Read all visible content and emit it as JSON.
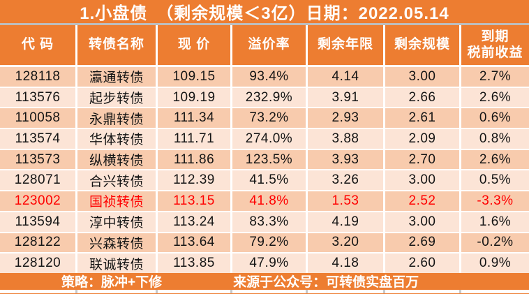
{
  "title": "1.小盘债　（剩余规模＜3亿）日期：2022.05.14",
  "chart_data": {
    "type": "table",
    "title": "1.小盘债（剩余规模＜3亿）",
    "date": "2022.05.14",
    "columns": [
      "代 码",
      "转债名称",
      "现 价",
      "溢价率",
      "剩余年限",
      "剩余规模",
      "到期\n税前收益"
    ],
    "rows": [
      [
        "128118",
        "瀛通转债",
        "109.15",
        "93.4%",
        "4.14",
        "3.00",
        "2.7%"
      ],
      [
        "113576",
        "起步转债",
        "109.19",
        "232.9%",
        "3.91",
        "2.66",
        "2.6%"
      ],
      [
        "110058",
        "永鼎转债",
        "111.34",
        "73.2%",
        "2.93",
        "2.61",
        "0.6%"
      ],
      [
        "113574",
        "华体转债",
        "111.71",
        "274.0%",
        "3.88",
        "2.09",
        "0.8%"
      ],
      [
        "113573",
        "纵横转债",
        "111.86",
        "123.5%",
        "3.93",
        "2.70",
        "2.6%"
      ],
      [
        "128071",
        "合兴转债",
        "112.39",
        "41.5%",
        "3.26",
        "3.00",
        "0.5%"
      ],
      [
        "123002",
        "国祯转债",
        "113.15",
        "41.8%",
        "1.53",
        "2.52",
        "-3.3%"
      ],
      [
        "113594",
        "淳中转债",
        "113.24",
        "83.3%",
        "4.19",
        "3.00",
        "1.6%"
      ],
      [
        "128122",
        "兴森转债",
        "113.64",
        "79.2%",
        "3.20",
        "2.69",
        "-0.2%"
      ],
      [
        "128120",
        "联诚转债",
        "113.85",
        "47.9%",
        "4.18",
        "2.60",
        "0.9%"
      ]
    ],
    "highlight_row_index": 6,
    "highlight_row_color": "#FF0000"
  },
  "footer": {
    "strategy": "策略：脉冲+下修",
    "source": "来源于公众号：可转债实盘百万"
  },
  "colors": {
    "accent_orange": "#ED7D31",
    "row_stripe_dark": "#F8CBAD",
    "row_stripe_light": "#FCE4D6",
    "header_text": "#FFFFFF",
    "body_text": "#151515",
    "highlight_text": "#FF0000",
    "title_separator": "#BDBDBD",
    "grid_line": "#FFFFFF"
  }
}
